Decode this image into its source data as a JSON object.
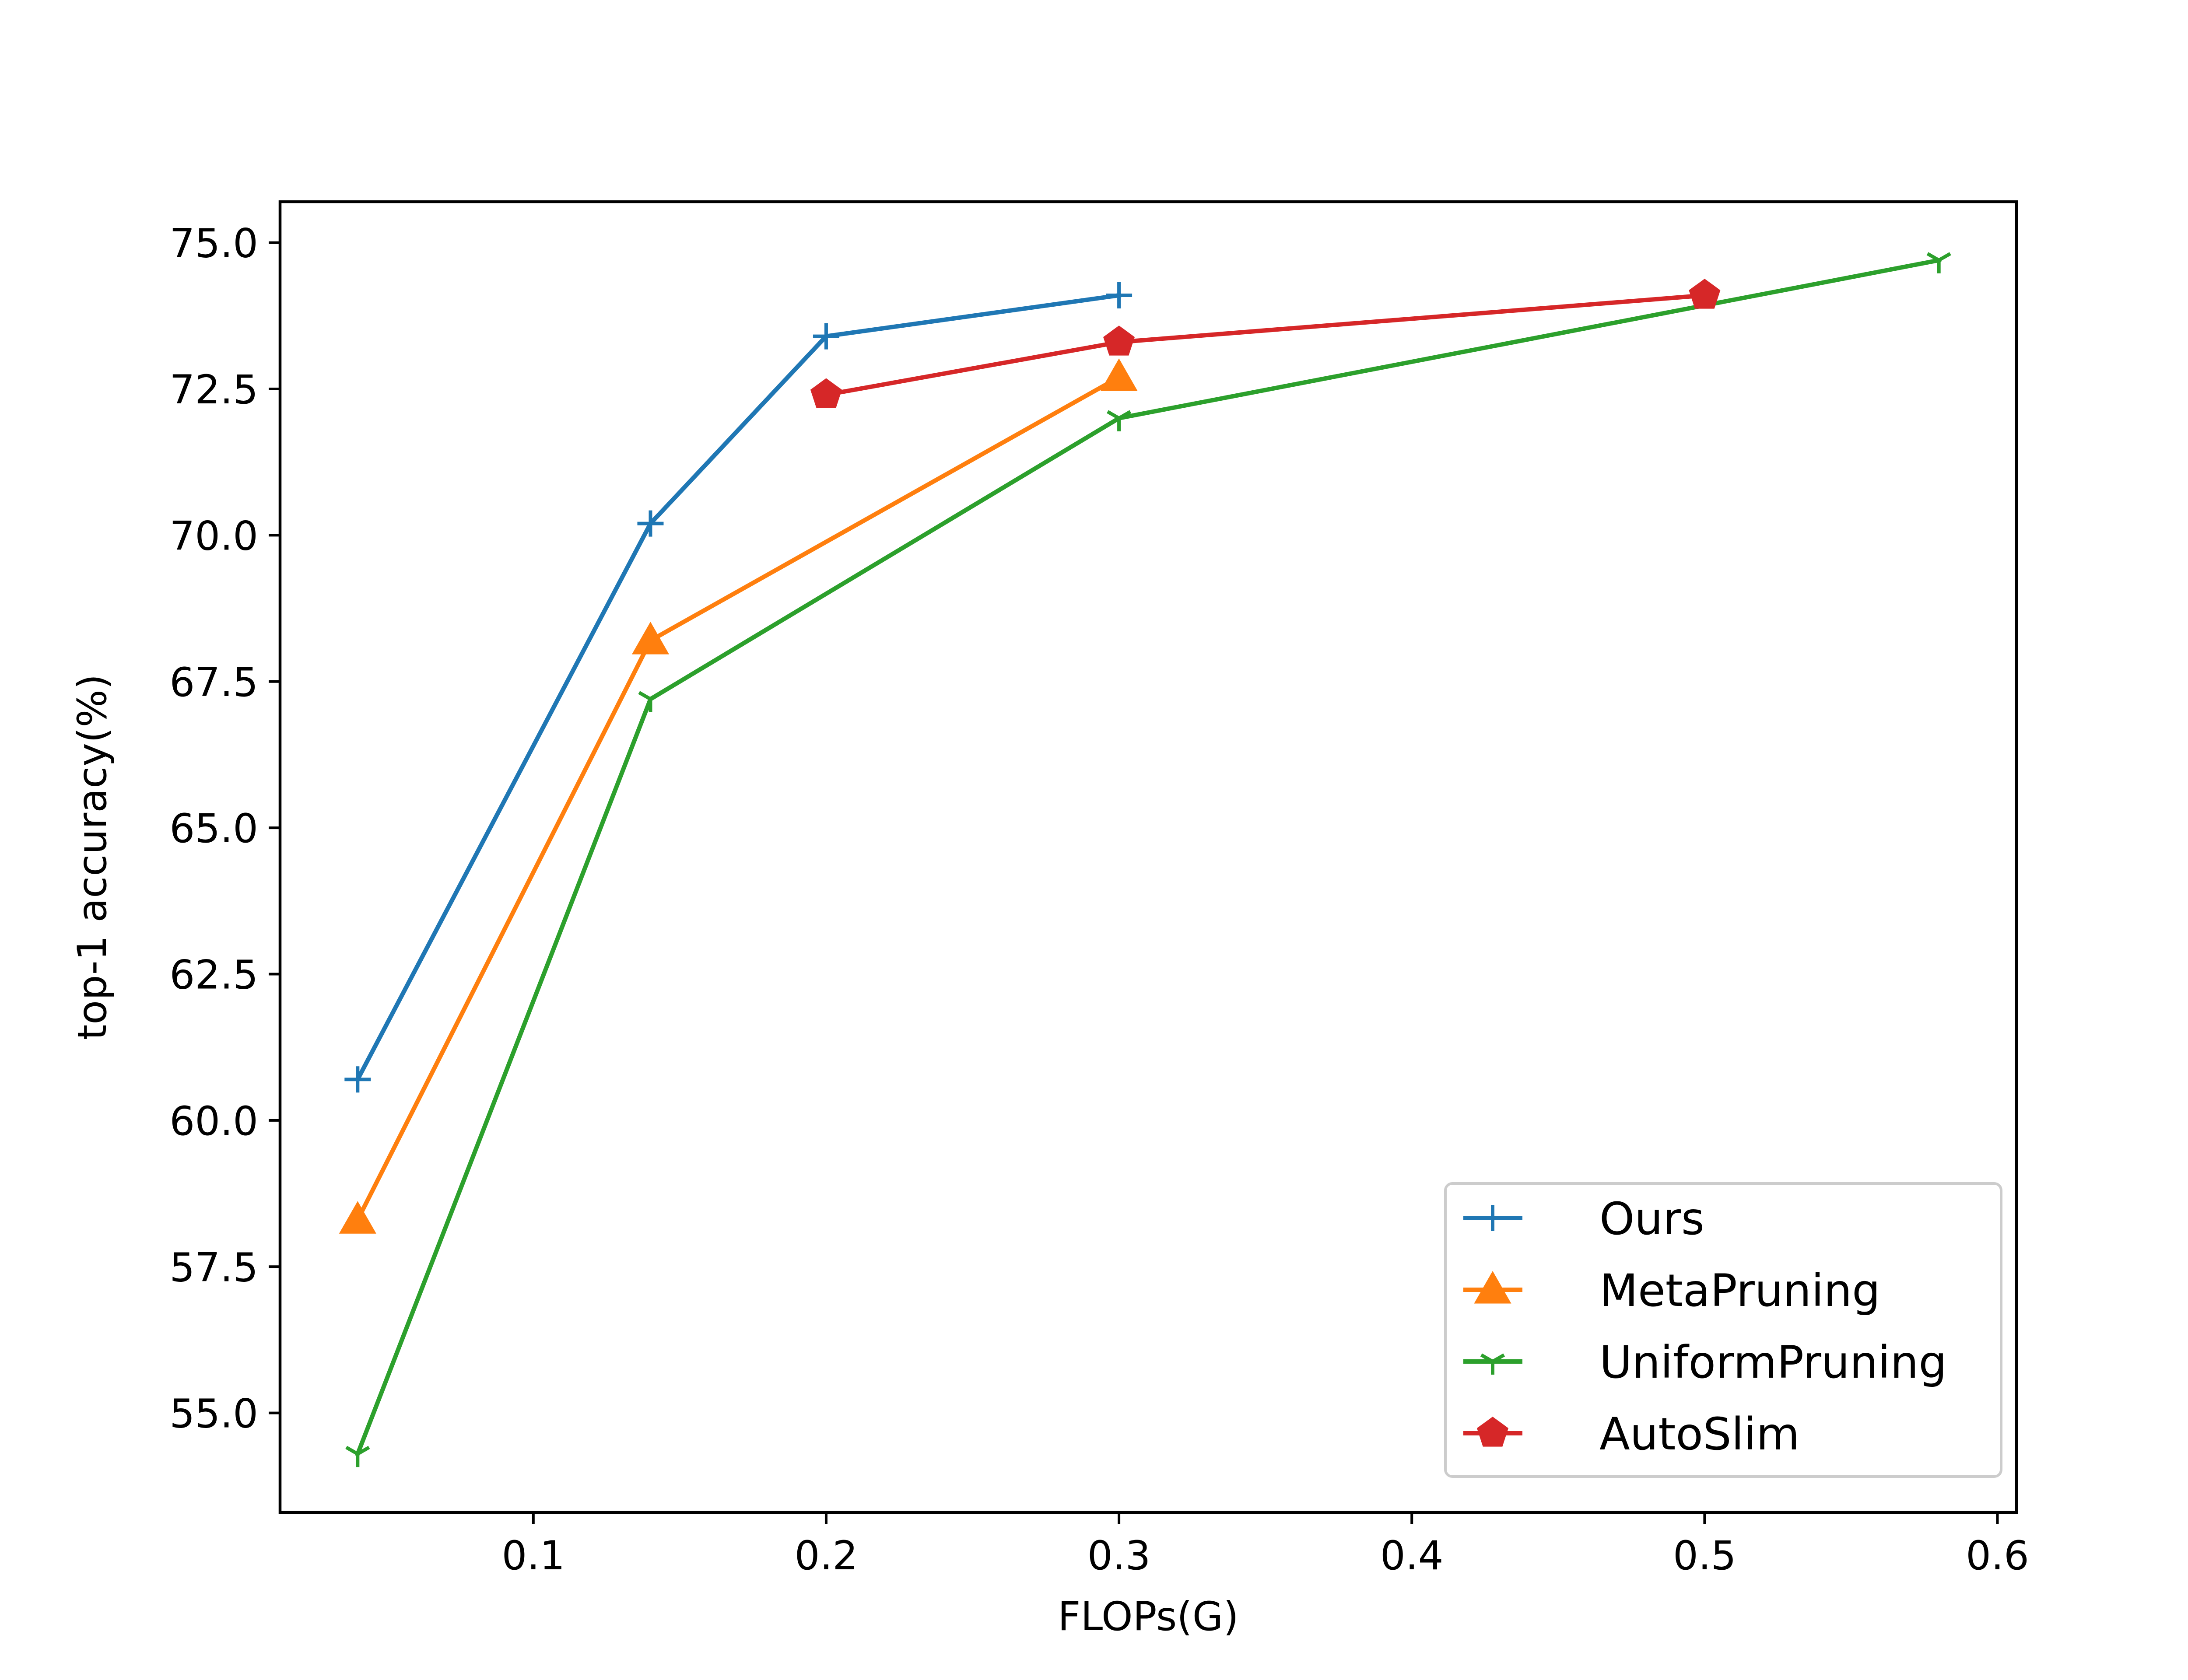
{
  "chart_data": {
    "type": "line",
    "title": "",
    "xlabel": "FLOPs(G)",
    "ylabel": "top-1 accuracy(%)",
    "xlim": [
      0.0135,
      0.6065
    ],
    "ylim": [
      53.3,
      75.7
    ],
    "x_ticks": [
      "0.1",
      "0.2",
      "0.3",
      "0.4",
      "0.5",
      "0.6"
    ],
    "y_ticks": [
      "55.0",
      "57.5",
      "60.0",
      "62.5",
      "65.0",
      "67.5",
      "70.0",
      "72.5",
      "75.0"
    ],
    "grid": false,
    "legend_position": "lower-right",
    "series": [
      {
        "name": "Ours",
        "color": "#1f77b4",
        "marker": "plus",
        "x": [
          0.04,
          0.14,
          0.2,
          0.3
        ],
        "y": [
          60.7,
          70.2,
          73.4,
          74.1
        ]
      },
      {
        "name": "MetaPruning",
        "color": "#ff7f0e",
        "marker": "triangle",
        "x": [
          0.04,
          0.14,
          0.3
        ],
        "y": [
          58.3,
          68.2,
          72.7
        ]
      },
      {
        "name": "UniformPruning",
        "color": "#2ca02c",
        "marker": "tri-down",
        "x": [
          0.04,
          0.14,
          0.3,
          0.58
        ],
        "y": [
          54.3,
          67.2,
          72.0,
          74.7
        ]
      },
      {
        "name": "AutoSlim",
        "color": "#d62728",
        "marker": "pentagon",
        "x": [
          0.2,
          0.3,
          0.5
        ],
        "y": [
          72.4,
          73.3,
          74.1
        ]
      }
    ]
  }
}
